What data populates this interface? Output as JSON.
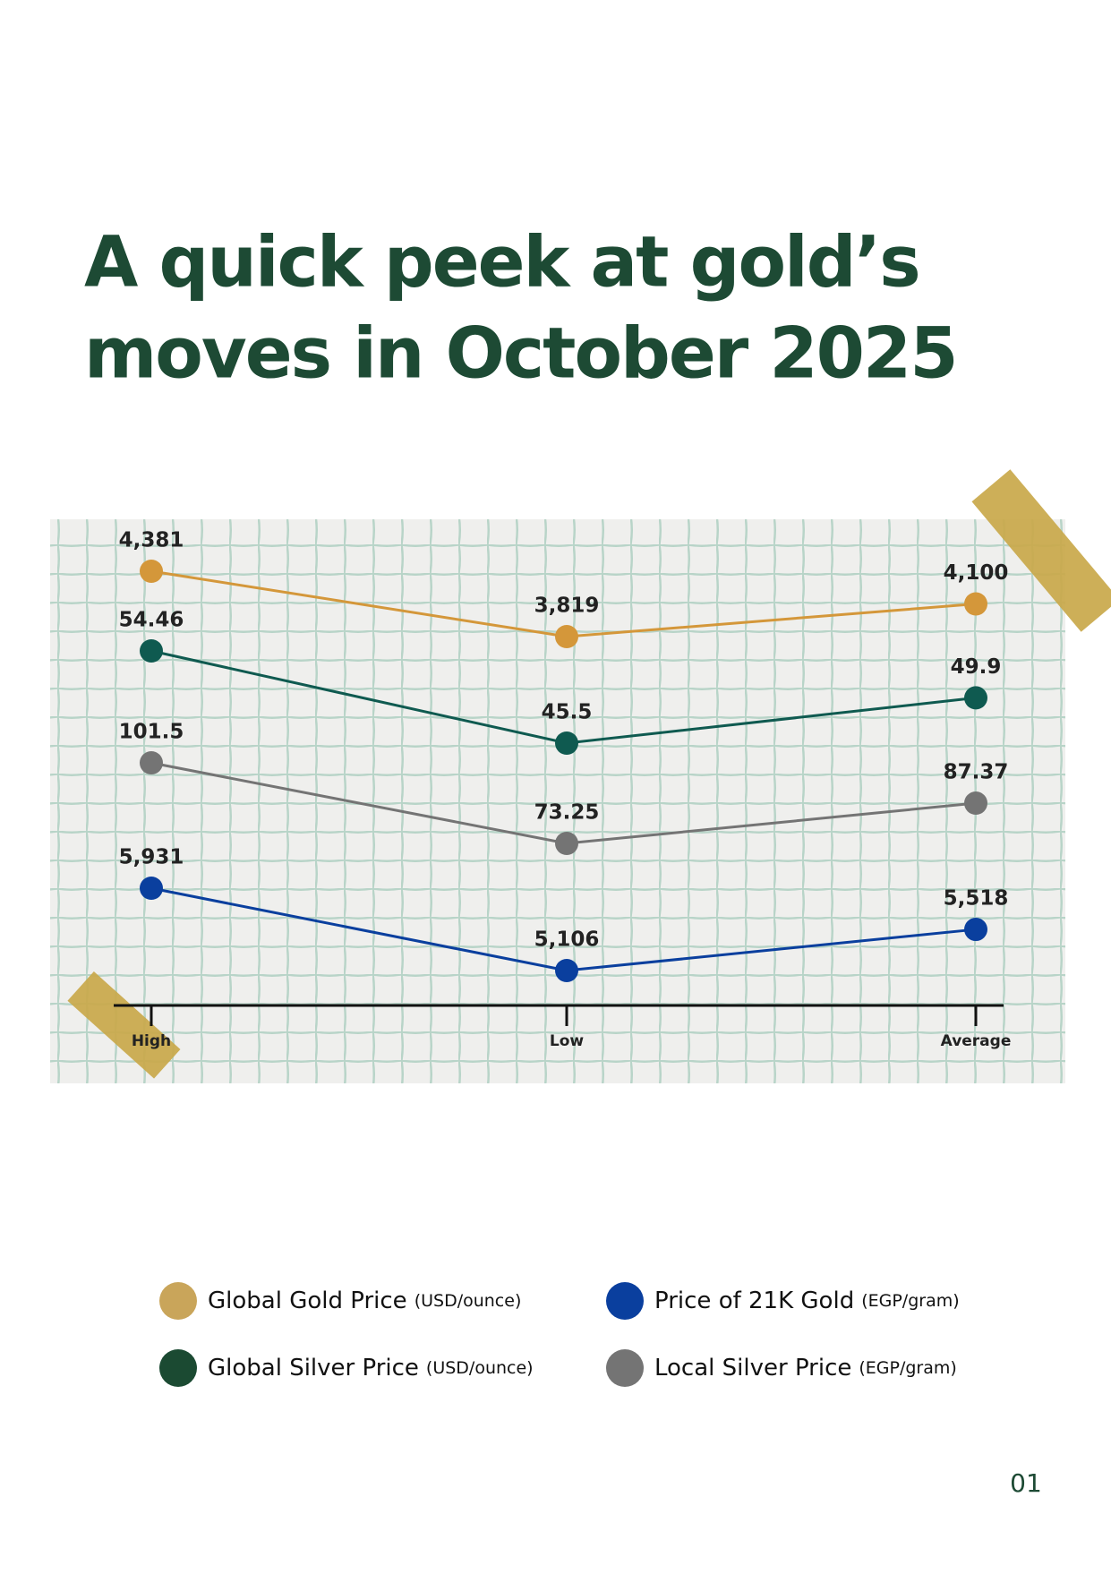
{
  "title_lines": [
    "A quick peek at gold’s",
    "moves in October 2025"
  ],
  "page_number": "01",
  "chart_data": {
    "type": "line",
    "categories": [
      "High",
      "Low",
      "Average"
    ],
    "series": [
      {
        "name": "Global Gold Price",
        "unit": "(USD/ounce)",
        "color": "#d4973a",
        "legend_color": "#c9a55a",
        "values": [
          4381,
          3819,
          4100
        ],
        "value_labels": [
          "4,381",
          "3,819",
          "4,100"
        ]
      },
      {
        "name": "Global Silver Price",
        "unit": "(USD/ounce)",
        "color": "#0f5a50",
        "legend_color": "#1b4a32",
        "values": [
          54.46,
          45.5,
          49.9
        ]
      },
      {
        "name": "Local Silver Price",
        "unit": "(EGP/gram)",
        "color": "#747474",
        "legend_color": "#747474",
        "values": [
          101.5,
          73.25,
          87.37
        ]
      },
      {
        "name": "Price of 21K Gold",
        "unit": "(EGP/gram)",
        "color": "#0a3f9e",
        "legend_color": "#0a3f9e",
        "values": [
          5931,
          5106,
          5518
        ],
        "value_labels": [
          "5,931",
          "5,106",
          "5,518"
        ]
      }
    ]
  }
}
